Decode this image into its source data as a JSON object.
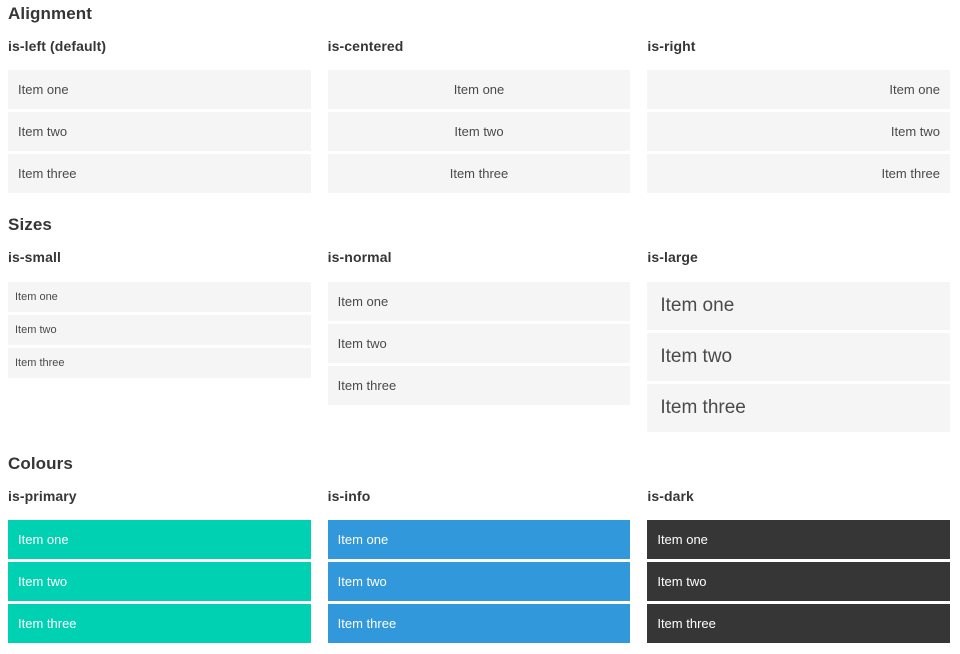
{
  "colors": {
    "primary": "#00d1b2",
    "info": "#3298dc",
    "dark": "#363636",
    "item_bg": "#f5f5f5",
    "item_text": "#4a4a4a",
    "heading_text": "#363636",
    "on_color_text": "#ffffff"
  },
  "sections": [
    {
      "title": "Alignment",
      "groups": [
        {
          "label": "is-left (default)",
          "items": [
            "Item one",
            "Item two",
            "Item three"
          ]
        },
        {
          "label": "is-centered",
          "items": [
            "Item one",
            "Item two",
            "Item three"
          ]
        },
        {
          "label": "is-right",
          "items": [
            "Item one",
            "Item two",
            "Item three"
          ]
        }
      ]
    },
    {
      "title": "Sizes",
      "groups": [
        {
          "label": "is-small",
          "items": [
            "Item one",
            "Item two",
            "Item three"
          ]
        },
        {
          "label": "is-normal",
          "items": [
            "Item one",
            "Item two",
            "Item three"
          ]
        },
        {
          "label": "is-large",
          "items": [
            "Item one",
            "Item two",
            "Item three"
          ]
        }
      ]
    },
    {
      "title": "Colours",
      "groups": [
        {
          "label": "is-primary",
          "items": [
            "Item one",
            "Item two",
            "Item three"
          ]
        },
        {
          "label": "is-info",
          "items": [
            "Item one",
            "Item two",
            "Item three"
          ]
        },
        {
          "label": "is-dark",
          "items": [
            "Item one",
            "Item two",
            "Item three"
          ]
        }
      ]
    }
  ]
}
